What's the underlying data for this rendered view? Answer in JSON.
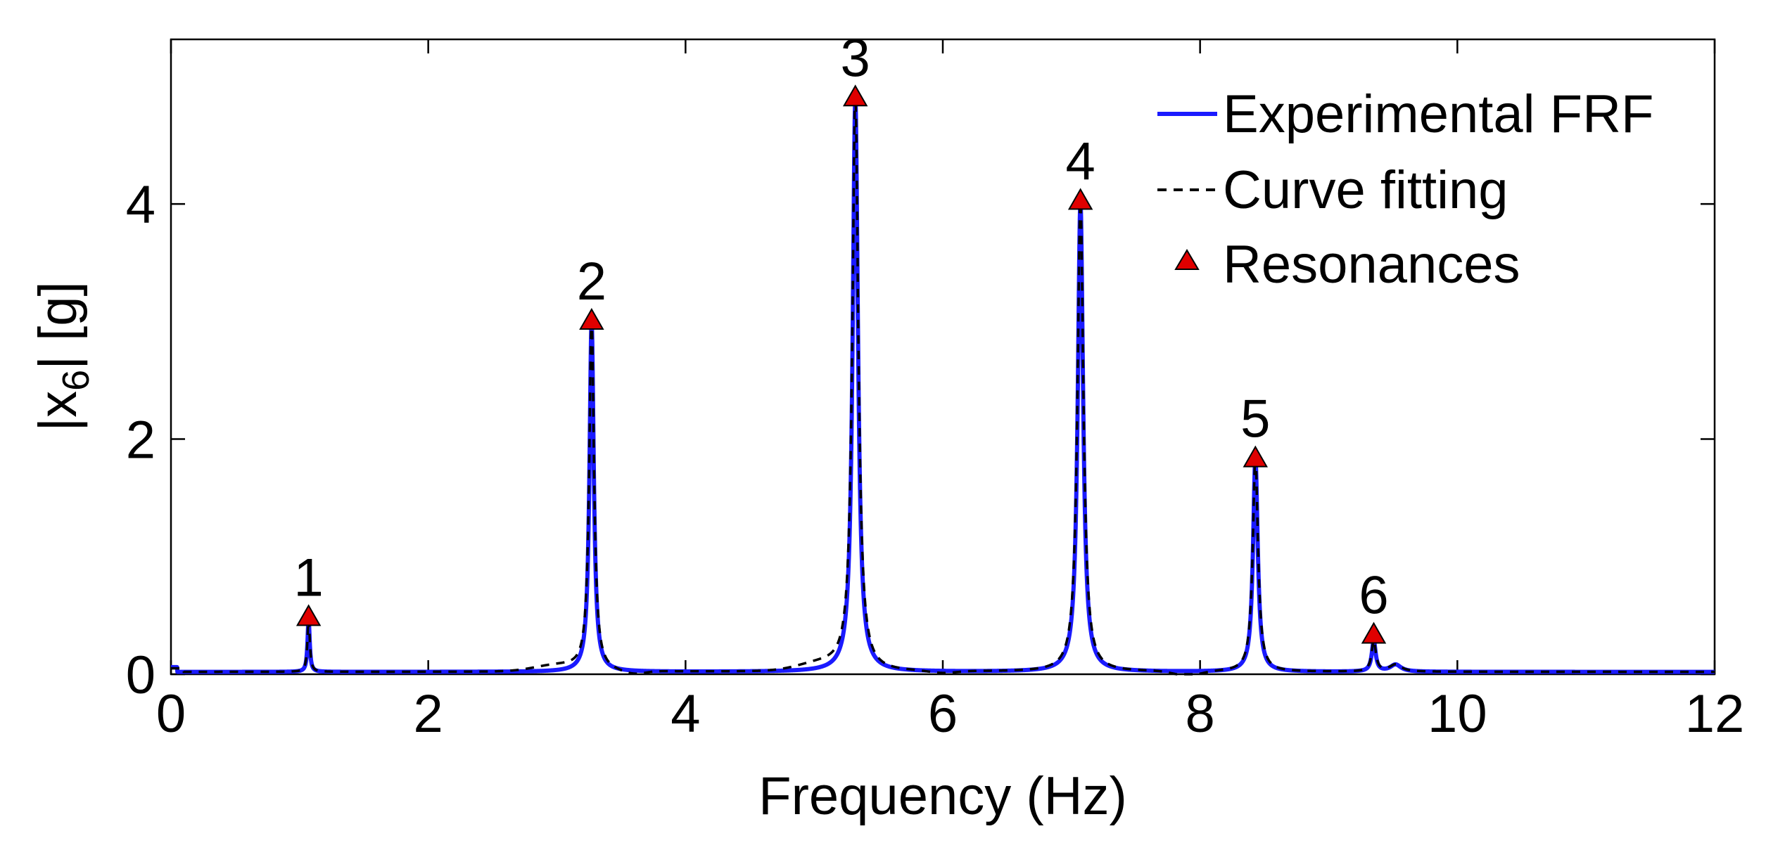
{
  "chart_data": {
    "type": "line",
    "xlabel": "Frequency (Hz)",
    "ylabel_main": "|x",
    "ylabel_sub": "6",
    "ylabel_tail": "| [g]",
    "xlim": [
      0,
      12
    ],
    "ylim": [
      0,
      5.4
    ],
    "xticks": [
      0,
      2,
      4,
      6,
      8,
      10,
      12
    ],
    "yticks": [
      0,
      2,
      4
    ],
    "grid": false,
    "legend_position": "top-right",
    "legend": [
      {
        "label": "Experimental FRF",
        "style": "solid",
        "color": "#1a1aff"
      },
      {
        "label": "Curve fitting",
        "style": "dashed",
        "color": "#000000"
      },
      {
        "label": "Resonances",
        "style": "marker",
        "color": "#e00000"
      }
    ],
    "resonances": [
      {
        "label": "1",
        "x": 1.07,
        "y": 0.5
      },
      {
        "label": "2",
        "x": 3.27,
        "y": 3.02
      },
      {
        "label": "3",
        "x": 5.32,
        "y": 4.92
      },
      {
        "label": "4",
        "x": 7.07,
        "y": 4.04
      },
      {
        "label": "5",
        "x": 8.43,
        "y": 1.85
      },
      {
        "label": "6",
        "x": 9.35,
        "y": 0.35
      }
    ],
    "peaks": [
      {
        "x": 1.07,
        "amp": 0.45,
        "width": 0.01
      },
      {
        "x": 3.27,
        "amp": 2.98,
        "width": 0.02
      },
      {
        "x": 5.32,
        "amp": 4.88,
        "width": 0.025
      },
      {
        "x": 7.07,
        "amp": 4.0,
        "width": 0.025
      },
      {
        "x": 8.43,
        "amp": 1.82,
        "width": 0.022
      },
      {
        "x": 9.35,
        "amp": 0.26,
        "width": 0.018
      },
      {
        "x": 9.52,
        "amp": 0.06,
        "width": 0.05
      }
    ],
    "baseline": 0.02,
    "colors": {
      "experimental": "#1a1aff",
      "fit": "#000000",
      "marker_fill": "#e00000",
      "marker_stroke": "#000000"
    }
  }
}
